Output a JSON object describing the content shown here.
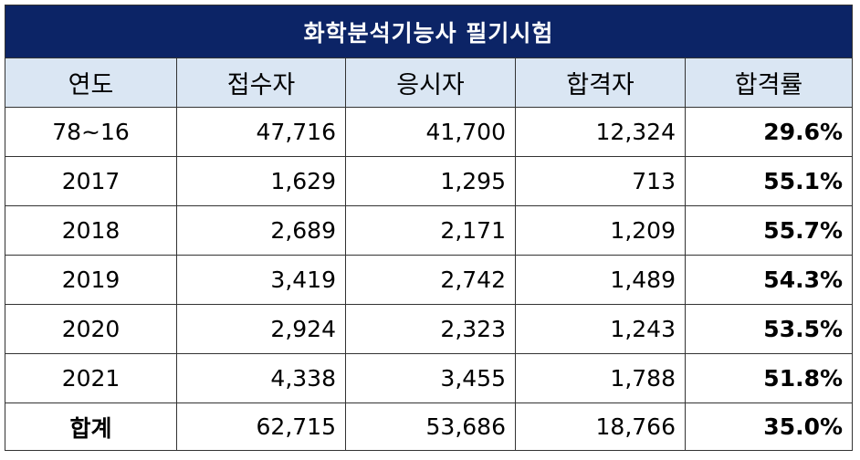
{
  "table": {
    "title": "화학분석기능사 필기시험",
    "headers": [
      "연도",
      "접수자",
      "응시자",
      "합격자",
      "합격률"
    ],
    "rows": [
      {
        "year": "78~16",
        "applicants": "47,716",
        "examinees": "41,700",
        "passers": "12,324",
        "rate": "29.6%"
      },
      {
        "year": "2017",
        "applicants": "1,629",
        "examinees": "1,295",
        "passers": "713",
        "rate": "55.1%"
      },
      {
        "year": "2018",
        "applicants": "2,689",
        "examinees": "2,171",
        "passers": "1,209",
        "rate": "55.7%"
      },
      {
        "year": "2019",
        "applicants": "3,419",
        "examinees": "2,742",
        "passers": "1,489",
        "rate": "54.3%"
      },
      {
        "year": "2020",
        "applicants": "2,924",
        "examinees": "2,323",
        "passers": "1,243",
        "rate": "53.5%"
      },
      {
        "year": "2021",
        "applicants": "4,338",
        "examinees": "3,455",
        "passers": "1,788",
        "rate": "51.8%"
      }
    ],
    "total": {
      "label": "합계",
      "applicants": "62,715",
      "examinees": "53,686",
      "passers": "18,766",
      "rate": "35.0%"
    }
  },
  "colors": {
    "title_bg": "#0c2466",
    "header_bg": "#dae6f3",
    "border": "#333333"
  }
}
